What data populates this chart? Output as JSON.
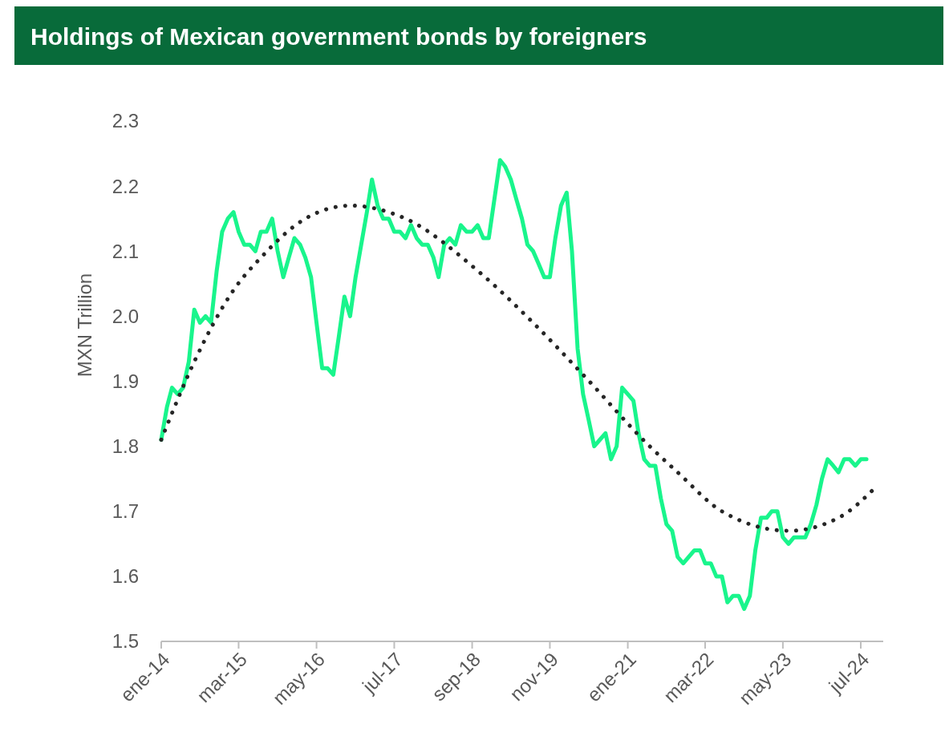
{
  "chart_data": {
    "type": "line",
    "title": "Holdings of Mexican government bonds by foreigners",
    "ylabel": "MXN Trillion",
    "xlim": [
      "2014-01",
      "2024-11"
    ],
    "xticks": [
      {
        "value": "2014-01",
        "label": "ene-14"
      },
      {
        "value": "2015-03",
        "label": "mar-15"
      },
      {
        "value": "2016-05",
        "label": "may-16"
      },
      {
        "value": "2017-07",
        "label": "jul-17"
      },
      {
        "value": "2018-09",
        "label": "sep-18"
      },
      {
        "value": "2019-11",
        "label": "nov-19"
      },
      {
        "value": "2021-01",
        "label": "ene-21"
      },
      {
        "value": "2022-03",
        "label": "mar-22"
      },
      {
        "value": "2023-05",
        "label": "may-23"
      },
      {
        "value": "2024-07",
        "label": "jul-24"
      }
    ],
    "ylim": [
      1.5,
      2.3
    ],
    "yticks": [
      1.5,
      1.6,
      1.7,
      1.8,
      1.9,
      {
        "value": 2,
        "label": "2.0"
      },
      2.1,
      2.2,
      2.3
    ],
    "grid": false,
    "series": [
      {
        "color": "#19f58c",
        "line_style": "solid",
        "x": [
          "2014-01",
          "2014-02",
          "2014-03",
          "2014-04",
          "2014-05",
          "2014-06",
          "2014-07",
          "2014-08",
          "2014-09",
          "2014-10",
          "2014-11",
          "2014-12",
          "2015-01",
          "2015-02",
          "2015-03",
          "2015-04",
          "2015-05",
          "2015-06",
          "2015-07",
          "2015-08",
          "2015-09",
          "2015-10",
          "2015-11",
          "2015-12",
          "2016-01",
          "2016-02",
          "2016-03",
          "2016-04",
          "2016-05",
          "2016-06",
          "2016-07",
          "2016-08",
          "2016-09",
          "2016-10",
          "2016-11",
          "2016-12",
          "2017-01",
          "2017-02",
          "2017-03",
          "2017-04",
          "2017-05",
          "2017-06",
          "2017-07",
          "2017-08",
          "2017-09",
          "2017-10",
          "2017-11",
          "2017-12",
          "2018-01",
          "2018-02",
          "2018-03",
          "2018-04",
          "2018-05",
          "2018-06",
          "2018-07",
          "2018-08",
          "2018-09",
          "2018-10",
          "2018-11",
          "2018-12",
          "2019-01",
          "2019-02",
          "2019-03",
          "2019-04",
          "2019-05",
          "2019-06",
          "2019-07",
          "2019-08",
          "2019-09",
          "2019-10",
          "2019-11",
          "2019-12",
          "2020-01",
          "2020-02",
          "2020-03",
          "2020-04",
          "2020-05",
          "2020-06",
          "2020-07",
          "2020-08",
          "2020-09",
          "2020-10",
          "2020-11",
          "2020-12",
          "2021-01",
          "2021-02",
          "2021-03",
          "2021-04",
          "2021-05",
          "2021-06",
          "2021-07",
          "2021-08",
          "2021-09",
          "2021-10",
          "2021-11",
          "2021-12",
          "2022-01",
          "2022-02",
          "2022-03",
          "2022-04",
          "2022-05",
          "2022-06",
          "2022-07",
          "2022-08",
          "2022-09",
          "2022-10",
          "2022-11",
          "2022-12",
          "2023-01",
          "2023-02",
          "2023-03",
          "2023-04",
          "2023-05",
          "2023-06",
          "2023-07",
          "2023-08",
          "2023-09",
          "2023-10",
          "2023-11",
          "2023-12",
          "2024-01",
          "2024-02",
          "2024-03",
          "2024-04",
          "2024-05",
          "2024-06",
          "2024-07",
          "2024-08"
        ],
        "values": [
          1.81,
          1.86,
          1.89,
          1.88,
          1.89,
          1.93,
          2.01,
          1.99,
          2.0,
          1.99,
          2.07,
          2.13,
          2.15,
          2.16,
          2.13,
          2.11,
          2.11,
          2.1,
          2.13,
          2.13,
          2.15,
          2.1,
          2.06,
          2.09,
          2.12,
          2.11,
          2.09,
          2.06,
          1.99,
          1.92,
          1.92,
          1.91,
          1.97,
          2.03,
          2.0,
          2.06,
          2.11,
          2.16,
          2.21,
          2.17,
          2.15,
          2.15,
          2.13,
          2.13,
          2.12,
          2.14,
          2.12,
          2.11,
          2.11,
          2.09,
          2.06,
          2.11,
          2.12,
          2.11,
          2.14,
          2.13,
          2.13,
          2.14,
          2.12,
          2.12,
          2.18,
          2.24,
          2.23,
          2.21,
          2.18,
          2.15,
          2.11,
          2.1,
          2.08,
          2.06,
          2.06,
          2.12,
          2.17,
          2.19,
          2.1,
          1.95,
          1.88,
          1.84,
          1.8,
          1.81,
          1.82,
          1.78,
          1.8,
          1.89,
          1.88,
          1.87,
          1.82,
          1.78,
          1.77,
          1.77,
          1.72,
          1.68,
          1.67,
          1.63,
          1.62,
          1.63,
          1.64,
          1.64,
          1.62,
          1.62,
          1.6,
          1.6,
          1.56,
          1.57,
          1.57,
          1.55,
          1.57,
          1.64,
          1.69,
          1.69,
          1.7,
          1.7,
          1.66,
          1.65,
          1.66,
          1.66,
          1.66,
          1.68,
          1.71,
          1.75,
          1.78,
          1.77,
          1.76,
          1.78,
          1.78,
          1.77,
          1.78,
          1.78
        ]
      },
      {
        "color": "#262626",
        "line_style": "dotted",
        "x": [
          "2014-01",
          "2014-07",
          "2015-02",
          "2015-07",
          "2016-03",
          "2016-11",
          "2017-09",
          "2018-10",
          "2019-08",
          "2020-05",
          "2021-05",
          "2021-10",
          "2022-06",
          "2023-06",
          "2024-03",
          "2024-10"
        ],
        "values": [
          1.81,
          1.93,
          2.04,
          2.09,
          2.15,
          2.17,
          2.15,
          2.07,
          1.99,
          1.91,
          1.8,
          1.76,
          1.7,
          1.67,
          1.69,
          1.74
        ]
      }
    ]
  }
}
